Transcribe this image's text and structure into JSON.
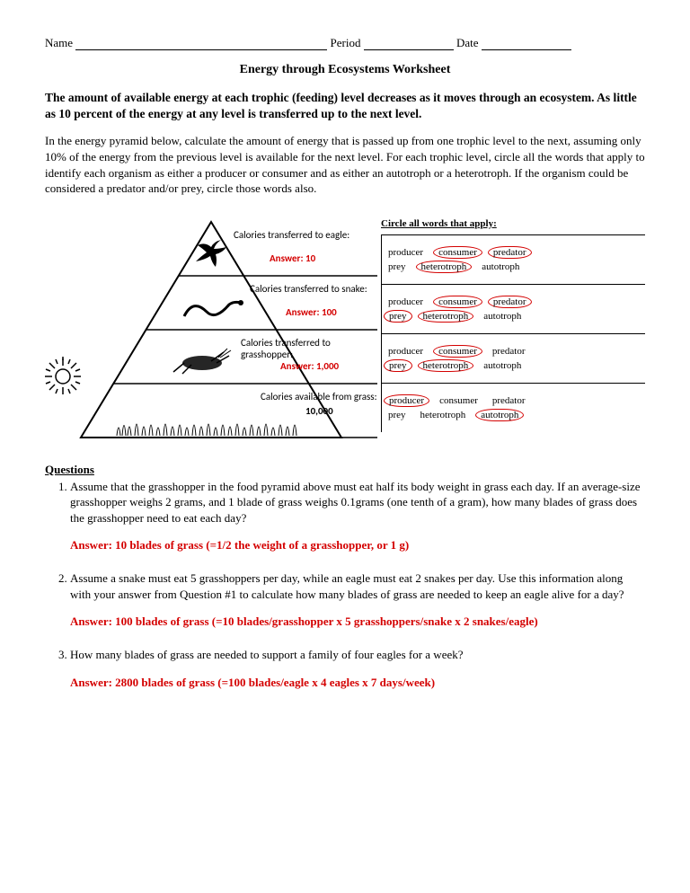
{
  "header": {
    "name_label": "Name",
    "period_label": "Period",
    "date_label": "Date"
  },
  "title": "Energy through Ecosystems Worksheet",
  "intro_bold": "The amount of available energy at each trophic (feeding) level decreases as it moves through an ecosystem. As little as 10 percent of the energy at any level is transferred up to the next level.",
  "intro": "In the energy pyramid below, calculate the amount of energy that is passed up from one trophic level to the next, assuming only 10% of the energy from the previous level is available for the next level. For each trophic level, circle all the words that apply to identify each organism as either a producer or consumer and as either an autotroph or a heterotroph. If the organism could be considered a predator and/or prey, circle those words also.",
  "words_header": "Circle all words that apply:",
  "tags": [
    "producer",
    "consumer",
    "predator",
    "prey",
    "heterotroph",
    "autotroph"
  ],
  "levels": [
    {
      "label": "Calories transferred to eagle:",
      "answer_prefix": "Answer:",
      "answer": "10",
      "circled": [
        "consumer",
        "predator",
        "heterotroph"
      ]
    },
    {
      "label": "Calories transferred to snake:",
      "answer_prefix": "Answer:",
      "answer": "100",
      "circled": [
        "consumer",
        "predator",
        "prey",
        "heterotroph"
      ]
    },
    {
      "label": "Calories transferred to grasshopper:",
      "answer_prefix": "Answer:",
      "answer": "1,000",
      "circled": [
        "consumer",
        "prey",
        "heterotroph"
      ]
    },
    {
      "label": "Calories available from grass:",
      "static_value": "10,000",
      "circled": [
        "producer",
        "autotroph"
      ]
    }
  ],
  "questions_header": "Questions",
  "questions": [
    {
      "text": "Assume that the grasshopper in the food pyramid above must eat half its body weight in grass each day.  If an average-size grasshopper weighs 2 grams, and 1 blade of grass weighs 0.1grams (one tenth of a gram), how many blades of grass does the grasshopper need to eat each day?",
      "answer": "Answer: 10 blades of grass (=1/2 the weight of a grasshopper, or 1 g)"
    },
    {
      "text": "Assume a snake must eat 5 grasshoppers per day, while an eagle must eat 2 snakes per day.  Use this information along with your answer from Question #1 to calculate how many blades of grass are needed to keep an eagle alive for a day?",
      "answer": "Answer: 100 blades of grass (=10 blades/grasshopper x 5 grasshoppers/snake x 2 snakes/eagle)"
    },
    {
      "text": "How many blades of grass are needed to support a family of four eagles for a week?",
      "answer": "Answer: 2800 blades of grass (=100 blades/eagle x 4 eagles x 7 days/week)"
    }
  ]
}
